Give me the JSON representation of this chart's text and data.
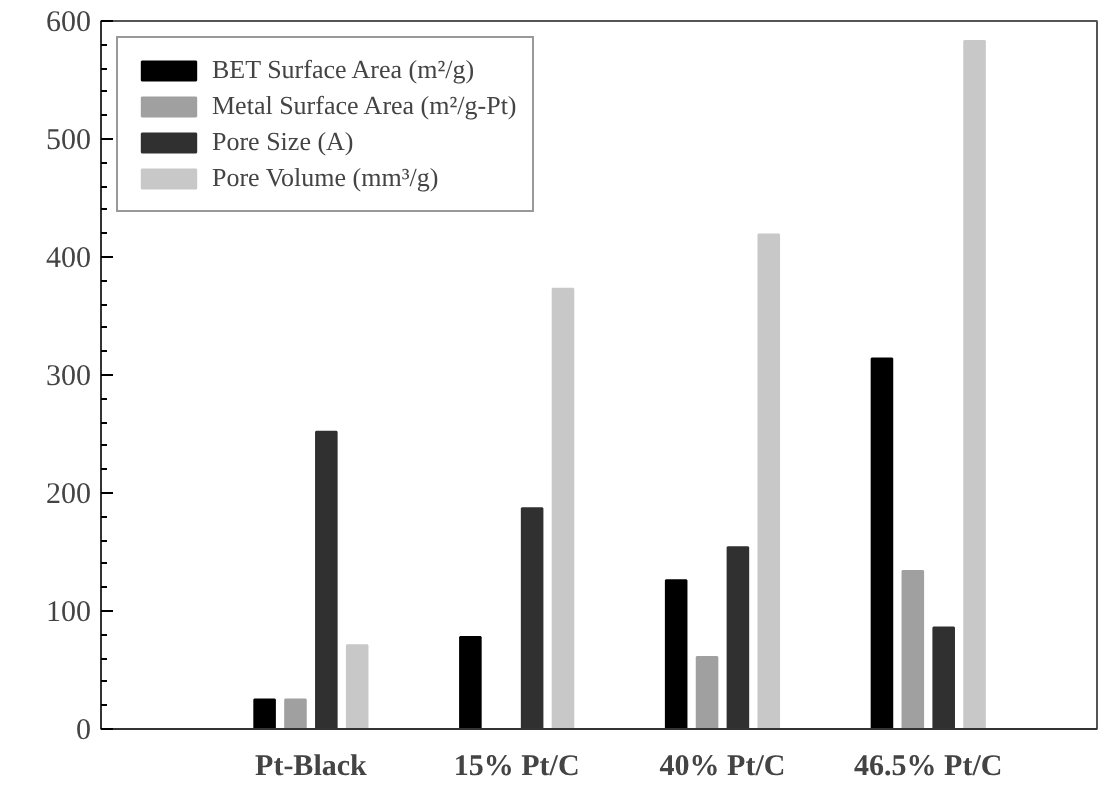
{
  "chart_data": {
    "type": "bar",
    "categories": [
      "Pt-Black",
      "15% Pt/C",
      "40% Pt/C",
      "46.5% Pt/C"
    ],
    "series": [
      {
        "name": "BET Surface Area (m²/g)",
        "color": "#000000",
        "values": [
          25,
          78,
          126,
          314
        ]
      },
      {
        "name": "Metal Surface Area (m²/g-Pt)",
        "color": "#a0a0a0",
        "values": [
          25,
          null,
          61,
          134
        ]
      },
      {
        "name": "Pore Size (A)",
        "color": "#303030",
        "values": [
          252,
          187,
          154,
          86
        ]
      },
      {
        "name": "Pore Volume (mm³/g)",
        "color": "#c8c8c8",
        "values": [
          71,
          373,
          419,
          583
        ]
      }
    ],
    "ylim": [
      0,
      600
    ],
    "yticks": [
      0,
      100,
      200,
      300,
      400,
      500,
      600
    ],
    "grid": false,
    "legend": "top left"
  }
}
